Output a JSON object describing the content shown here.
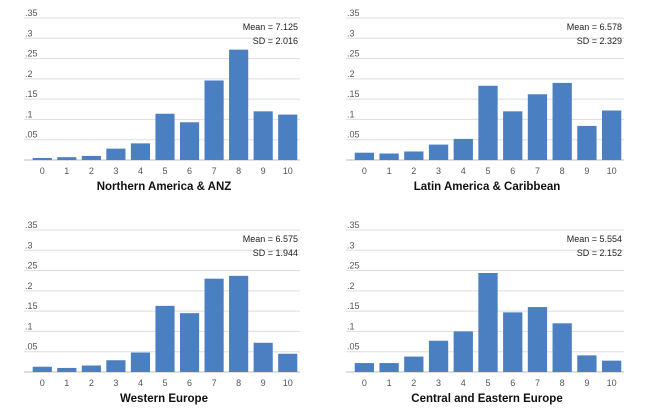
{
  "colors": {
    "bar": "#4a7fc1",
    "grid": "#dddddd",
    "axis": "#bbbbbb"
  },
  "chart_data": [
    {
      "type": "bar",
      "title": "Northern America & ANZ",
      "mean_label": "Mean = 7.125",
      "sd_label": "SD = 2.016",
      "categories": [
        "0",
        "1",
        "2",
        "3",
        "4",
        "5",
        "6",
        "7",
        "8",
        "9",
        "10"
      ],
      "values": [
        0.005,
        0.007,
        0.01,
        0.028,
        0.041,
        0.114,
        0.093,
        0.196,
        0.272,
        0.12,
        0.112
      ],
      "yticks": [
        ".05",
        ".1",
        ".15",
        ".2",
        ".25",
        ".3",
        ".35"
      ],
      "ylim": [
        0,
        0.35
      ],
      "grid": true
    },
    {
      "type": "bar",
      "title": "Latin America & Caribbean",
      "mean_label": "Mean = 6.578",
      "sd_label": "SD = 2.329",
      "categories": [
        "0",
        "1",
        "2",
        "3",
        "4",
        "5",
        "6",
        "7",
        "8",
        "9",
        "10"
      ],
      "values": [
        0.018,
        0.016,
        0.021,
        0.038,
        0.052,
        0.183,
        0.12,
        0.162,
        0.19,
        0.084,
        0.122
      ],
      "yticks": [
        ".05",
        ".1",
        ".15",
        ".2",
        ".25",
        ".3",
        ".35"
      ],
      "ylim": [
        0,
        0.35
      ],
      "grid": true
    },
    {
      "type": "bar",
      "title": "Western Europe",
      "mean_label": "Mean = 6.575",
      "sd_label": "SD = 1.944",
      "categories": [
        "0",
        "1",
        "2",
        "3",
        "4",
        "5",
        "6",
        "7",
        "8",
        "9",
        "10"
      ],
      "values": [
        0.013,
        0.01,
        0.016,
        0.029,
        0.048,
        0.163,
        0.145,
        0.23,
        0.237,
        0.072,
        0.045
      ],
      "yticks": [
        ".05",
        ".1",
        ".15",
        ".2",
        ".25",
        ".3",
        ".35"
      ],
      "ylim": [
        0,
        0.35
      ],
      "grid": true
    },
    {
      "type": "bar",
      "title": "Central and Eastern Europe",
      "mean_label": "Mean = 5.554",
      "sd_label": "SD = 2.152",
      "categories": [
        "0",
        "1",
        "2",
        "3",
        "4",
        "5",
        "6",
        "7",
        "8",
        "9",
        "10"
      ],
      "values": [
        0.022,
        0.022,
        0.038,
        0.077,
        0.1,
        0.244,
        0.147,
        0.16,
        0.12,
        0.041,
        0.028
      ],
      "yticks": [
        ".05",
        ".1",
        ".15",
        ".2",
        ".25",
        ".3",
        ".35"
      ],
      "ylim": [
        0,
        0.35
      ],
      "grid": true
    }
  ]
}
